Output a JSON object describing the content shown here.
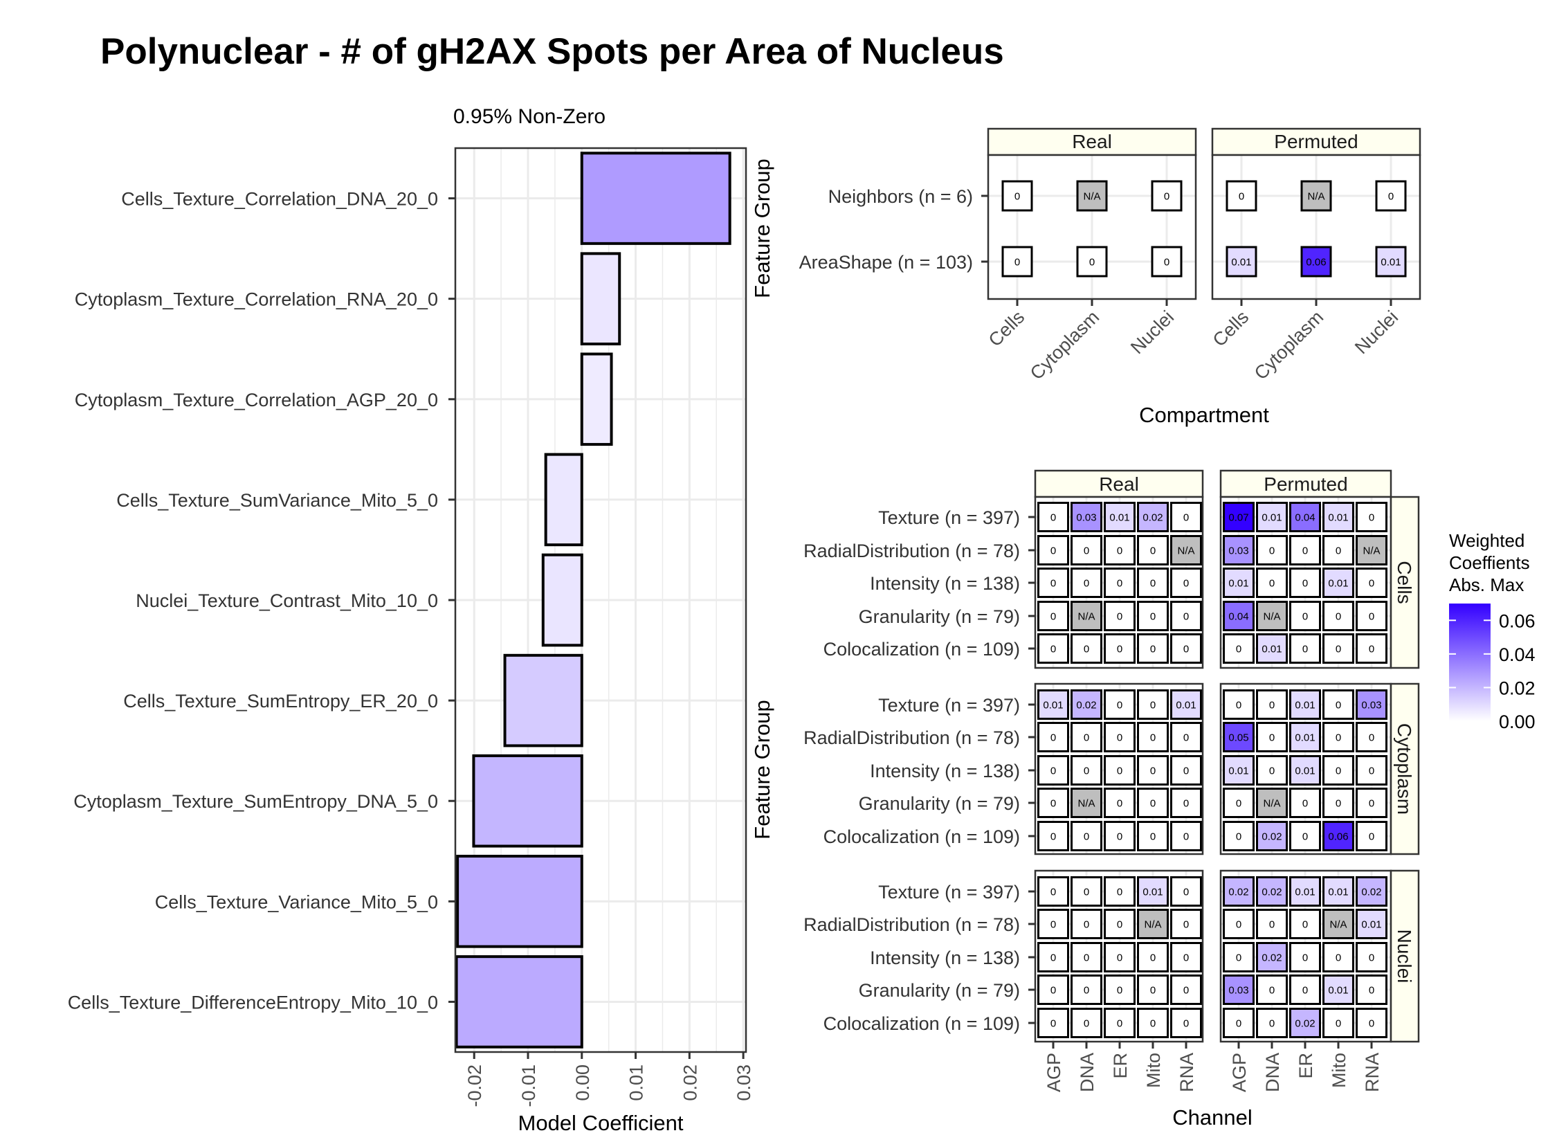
{
  "title": "Polynuclear - # of gH2AX Spots per Area of Nucleus",
  "colors": {
    "low": "#ffffff",
    "high": "#3300ff",
    "na": "#bebebe",
    "strip": "#fffff0",
    "grid": "#ebebeb"
  },
  "chart_data": [
    {
      "type": "bar",
      "orientation": "horizontal",
      "subtitle": "0.95% Non-Zero",
      "xlabel": "Model Coefficient",
      "ylabel": "",
      "xlim": [
        -0.0235,
        0.0305
      ],
      "xticks": [
        -0.02,
        -0.01,
        0.0,
        0.01,
        0.02,
        0.03
      ],
      "xtick_labels": [
        "-0.02",
        "-0.01",
        "0.00",
        "0.01",
        "0.02",
        "0.03"
      ],
      "grid": true,
      "categories": [
        "Cells_Texture_Correlation_DNA_20_0",
        "Cytoplasm_Texture_Correlation_RNA_20_0",
        "Cytoplasm_Texture_Correlation_AGP_20_0",
        "Cells_Texture_SumVariance_Mito_5_0",
        "Nuclei_Texture_Contrast_Mito_10_0",
        "Cells_Texture_SumEntropy_ER_20_0",
        "Cytoplasm_Texture_SumEntropy_DNA_5_0",
        "Cells_Texture_Variance_Mito_5_0",
        "Cells_Texture_DifferenceEntropy_Mito_10_0"
      ],
      "values": [
        0.0275,
        0.007,
        0.0055,
        -0.0067,
        -0.0072,
        -0.0143,
        -0.0201,
        -0.0231,
        -0.0233
      ],
      "fill_scale_max": 0.07
    },
    {
      "type": "heatmap",
      "xlabel": "Compartment",
      "ylabel": "Feature Group",
      "panels": [
        "Real",
        "Permuted"
      ],
      "x": [
        "Cells",
        "Cytoplasm",
        "Nuclei"
      ],
      "y": [
        "Neighbors (n = 6)",
        "AreaShape (n = 103)"
      ],
      "cells": {
        "Real": [
          [
            "0",
            "N/A",
            "0"
          ],
          [
            "0",
            "0",
            "0"
          ]
        ],
        "Permuted": [
          [
            "0",
            "N/A",
            "0"
          ],
          [
            "0.01",
            "0.06",
            "0.01"
          ]
        ]
      }
    },
    {
      "type": "heatmap",
      "xlabel": "Channel",
      "ylabel": "Feature Group",
      "panels": [
        "Real",
        "Permuted"
      ],
      "facet_rows": [
        "Cells",
        "Cytoplasm",
        "Nuclei"
      ],
      "x": [
        "AGP",
        "DNA",
        "ER",
        "Mito",
        "RNA"
      ],
      "y": [
        "Texture (n = 397)",
        "RadialDistribution (n = 78)",
        "Intensity (n = 138)",
        "Granularity (n = 79)",
        "Colocalization (n = 109)"
      ],
      "cells": {
        "Cells": {
          "Real": [
            [
              "0",
              "0.03",
              "0.01",
              "0.02",
              "0"
            ],
            [
              "0",
              "0",
              "0",
              "0",
              "N/A"
            ],
            [
              "0",
              "0",
              "0",
              "0",
              "0"
            ],
            [
              "0",
              "N/A",
              "0",
              "0",
              "0"
            ],
            [
              "0",
              "0",
              "0",
              "0",
              "0"
            ]
          ],
          "Permuted": [
            [
              "0.07",
              "0.01",
              "0.04",
              "0.01",
              "0"
            ],
            [
              "0.03",
              "0",
              "0",
              "0",
              "N/A"
            ],
            [
              "0.01",
              "0",
              "0",
              "0.01",
              "0"
            ],
            [
              "0.04",
              "N/A",
              "0",
              "0",
              "0"
            ],
            [
              "0",
              "0.01",
              "0",
              "0",
              "0"
            ]
          ]
        },
        "Cytoplasm": {
          "Real": [
            [
              "0.01",
              "0.02",
              "0",
              "0",
              "0.01"
            ],
            [
              "0",
              "0",
              "0",
              "0",
              "0"
            ],
            [
              "0",
              "0",
              "0",
              "0",
              "0"
            ],
            [
              "0",
              "N/A",
              "0",
              "0",
              "0"
            ],
            [
              "0",
              "0",
              "0",
              "0",
              "0"
            ]
          ],
          "Permuted": [
            [
              "0",
              "0",
              "0.01",
              "0",
              "0.03"
            ],
            [
              "0.05",
              "0",
              "0.01",
              "0",
              "0"
            ],
            [
              "0.01",
              "0",
              "0.01",
              "0",
              "0"
            ],
            [
              "0",
              "N/A",
              "0",
              "0",
              "0"
            ],
            [
              "0",
              "0.02",
              "0",
              "0.06",
              "0"
            ]
          ]
        },
        "Nuclei": {
          "Real": [
            [
              "0",
              "0",
              "0",
              "0.01",
              "0"
            ],
            [
              "0",
              "0",
              "0",
              "N/A",
              "0"
            ],
            [
              "0",
              "0",
              "0",
              "0",
              "0"
            ],
            [
              "0",
              "0",
              "0",
              "0",
              "0"
            ],
            [
              "0",
              "0",
              "0",
              "0",
              "0"
            ]
          ],
          "Permuted": [
            [
              "0.02",
              "0.02",
              "0.01",
              "0.01",
              "0.02"
            ],
            [
              "0",
              "0",
              "0",
              "N/A",
              "0.01"
            ],
            [
              "0",
              "0.02",
              "0",
              "0",
              "0"
            ],
            [
              "0.03",
              "0",
              "0",
              "0.01",
              "0"
            ],
            [
              "0",
              "0",
              "0.02",
              "0",
              "0"
            ]
          ]
        }
      },
      "legend": {
        "title": [
          "Weighted",
          "Coeffients",
          "Abs. Max"
        ],
        "ticks": [
          "0.06",
          "0.04",
          "0.02",
          "0.00"
        ],
        "tick_values": [
          0.06,
          0.04,
          0.02,
          0.0
        ],
        "max": 0.07
      }
    }
  ]
}
